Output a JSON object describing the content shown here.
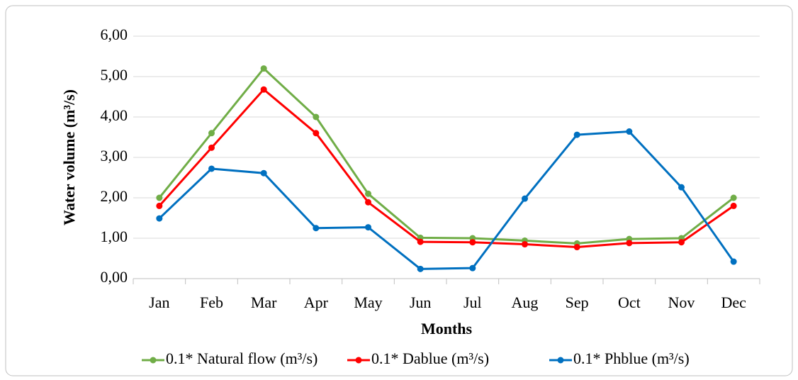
{
  "chart_data": {
    "type": "line",
    "x_label": "Months",
    "y_label": "Water volume (m³/s)",
    "categories": [
      "Jan",
      "Feb",
      "Mar",
      "Apr",
      "May",
      "Jun",
      "Jul",
      "Aug",
      "Sep",
      "Oct",
      "Nov",
      "Dec"
    ],
    "series": [
      {
        "name": "0.1* Natural flow (m³/s)",
        "color": "#70ad47",
        "values": [
          2.0,
          3.6,
          5.2,
          4.0,
          2.1,
          1.01,
          1.0,
          0.94,
          0.87,
          0.98,
          1.0,
          2.0
        ]
      },
      {
        "name": "0.1* Dablue (m³/s)",
        "color": "#ff0000",
        "values": [
          1.8,
          3.24,
          4.68,
          3.6,
          1.89,
          0.91,
          0.9,
          0.85,
          0.78,
          0.88,
          0.9,
          1.8
        ]
      },
      {
        "name": "0.1* Phblue (m³/s)",
        "color": "#0070c0",
        "values": [
          1.49,
          2.72,
          2.61,
          1.25,
          1.27,
          0.24,
          0.26,
          1.98,
          3.56,
          3.64,
          2.26,
          0.42
        ]
      }
    ],
    "ylim": [
      0,
      6
    ],
    "yticks": [
      {
        "value": 0,
        "label": "0,00"
      },
      {
        "value": 1,
        "label": "1,00"
      },
      {
        "value": 2,
        "label": "2,00"
      },
      {
        "value": 3,
        "label": "3,00"
      },
      {
        "value": 4,
        "label": "4,00"
      },
      {
        "value": 5,
        "label": "5,00"
      },
      {
        "value": 6,
        "label": "6,00"
      }
    ],
    "grid": true,
    "legend": "bottom"
  }
}
